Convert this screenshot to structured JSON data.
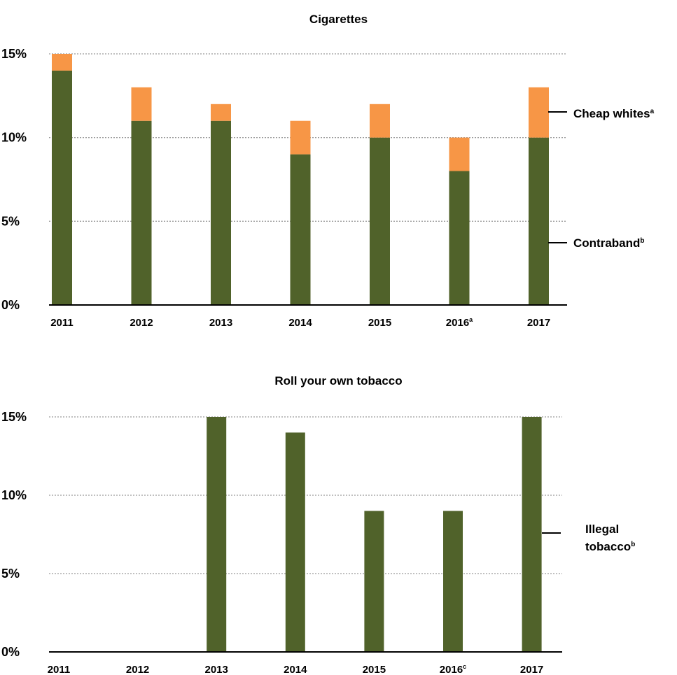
{
  "chart_data": [
    {
      "type": "bar",
      "title": "Cigarettes",
      "categories": [
        "2011",
        "2012",
        "2013",
        "2014",
        "2015",
        "2016",
        "2017"
      ],
      "category_superscripts": [
        "",
        "",
        "",
        "",
        "",
        "a",
        ""
      ],
      "stacked": true,
      "series": [
        {
          "name": "Contraband",
          "superscript": "b",
          "color": "#50622a",
          "values": [
            14,
            11,
            11,
            9,
            10,
            8,
            10
          ]
        },
        {
          "name": "Cheap whites",
          "superscript": "a",
          "color": "#f79646",
          "values": [
            1,
            2,
            1,
            2,
            2,
            2,
            3
          ]
        }
      ],
      "ylim": [
        0,
        15
      ],
      "yticks": [
        "0%",
        "5%",
        "10%",
        "15%"
      ],
      "grid": true,
      "legend": "right"
    },
    {
      "type": "bar",
      "title": "Roll your own tobacco",
      "categories": [
        "2011",
        "2012",
        "2013",
        "2014",
        "2015",
        "2016",
        "2017"
      ],
      "category_superscripts": [
        "",
        "",
        "",
        "",
        "",
        "c",
        ""
      ],
      "stacked": false,
      "series": [
        {
          "name": "Illegal tobacco",
          "superscript": "b",
          "color": "#50622a",
          "values": [
            null,
            null,
            15,
            14,
            9,
            9,
            15
          ]
        }
      ],
      "ylim": [
        0,
        15
      ],
      "yticks": [
        "0%",
        "5%",
        "10%",
        "15%"
      ],
      "grid": true,
      "legend": "right"
    }
  ],
  "legend_text": {
    "chart1_top": "Cheap whites",
    "chart1_top_sup": "a",
    "chart1_bottom": "Contraband",
    "chart1_bottom_sup": "b",
    "chart2_line1": "Illegal",
    "chart2_line2": "tobacco",
    "chart2_sup": "b"
  }
}
